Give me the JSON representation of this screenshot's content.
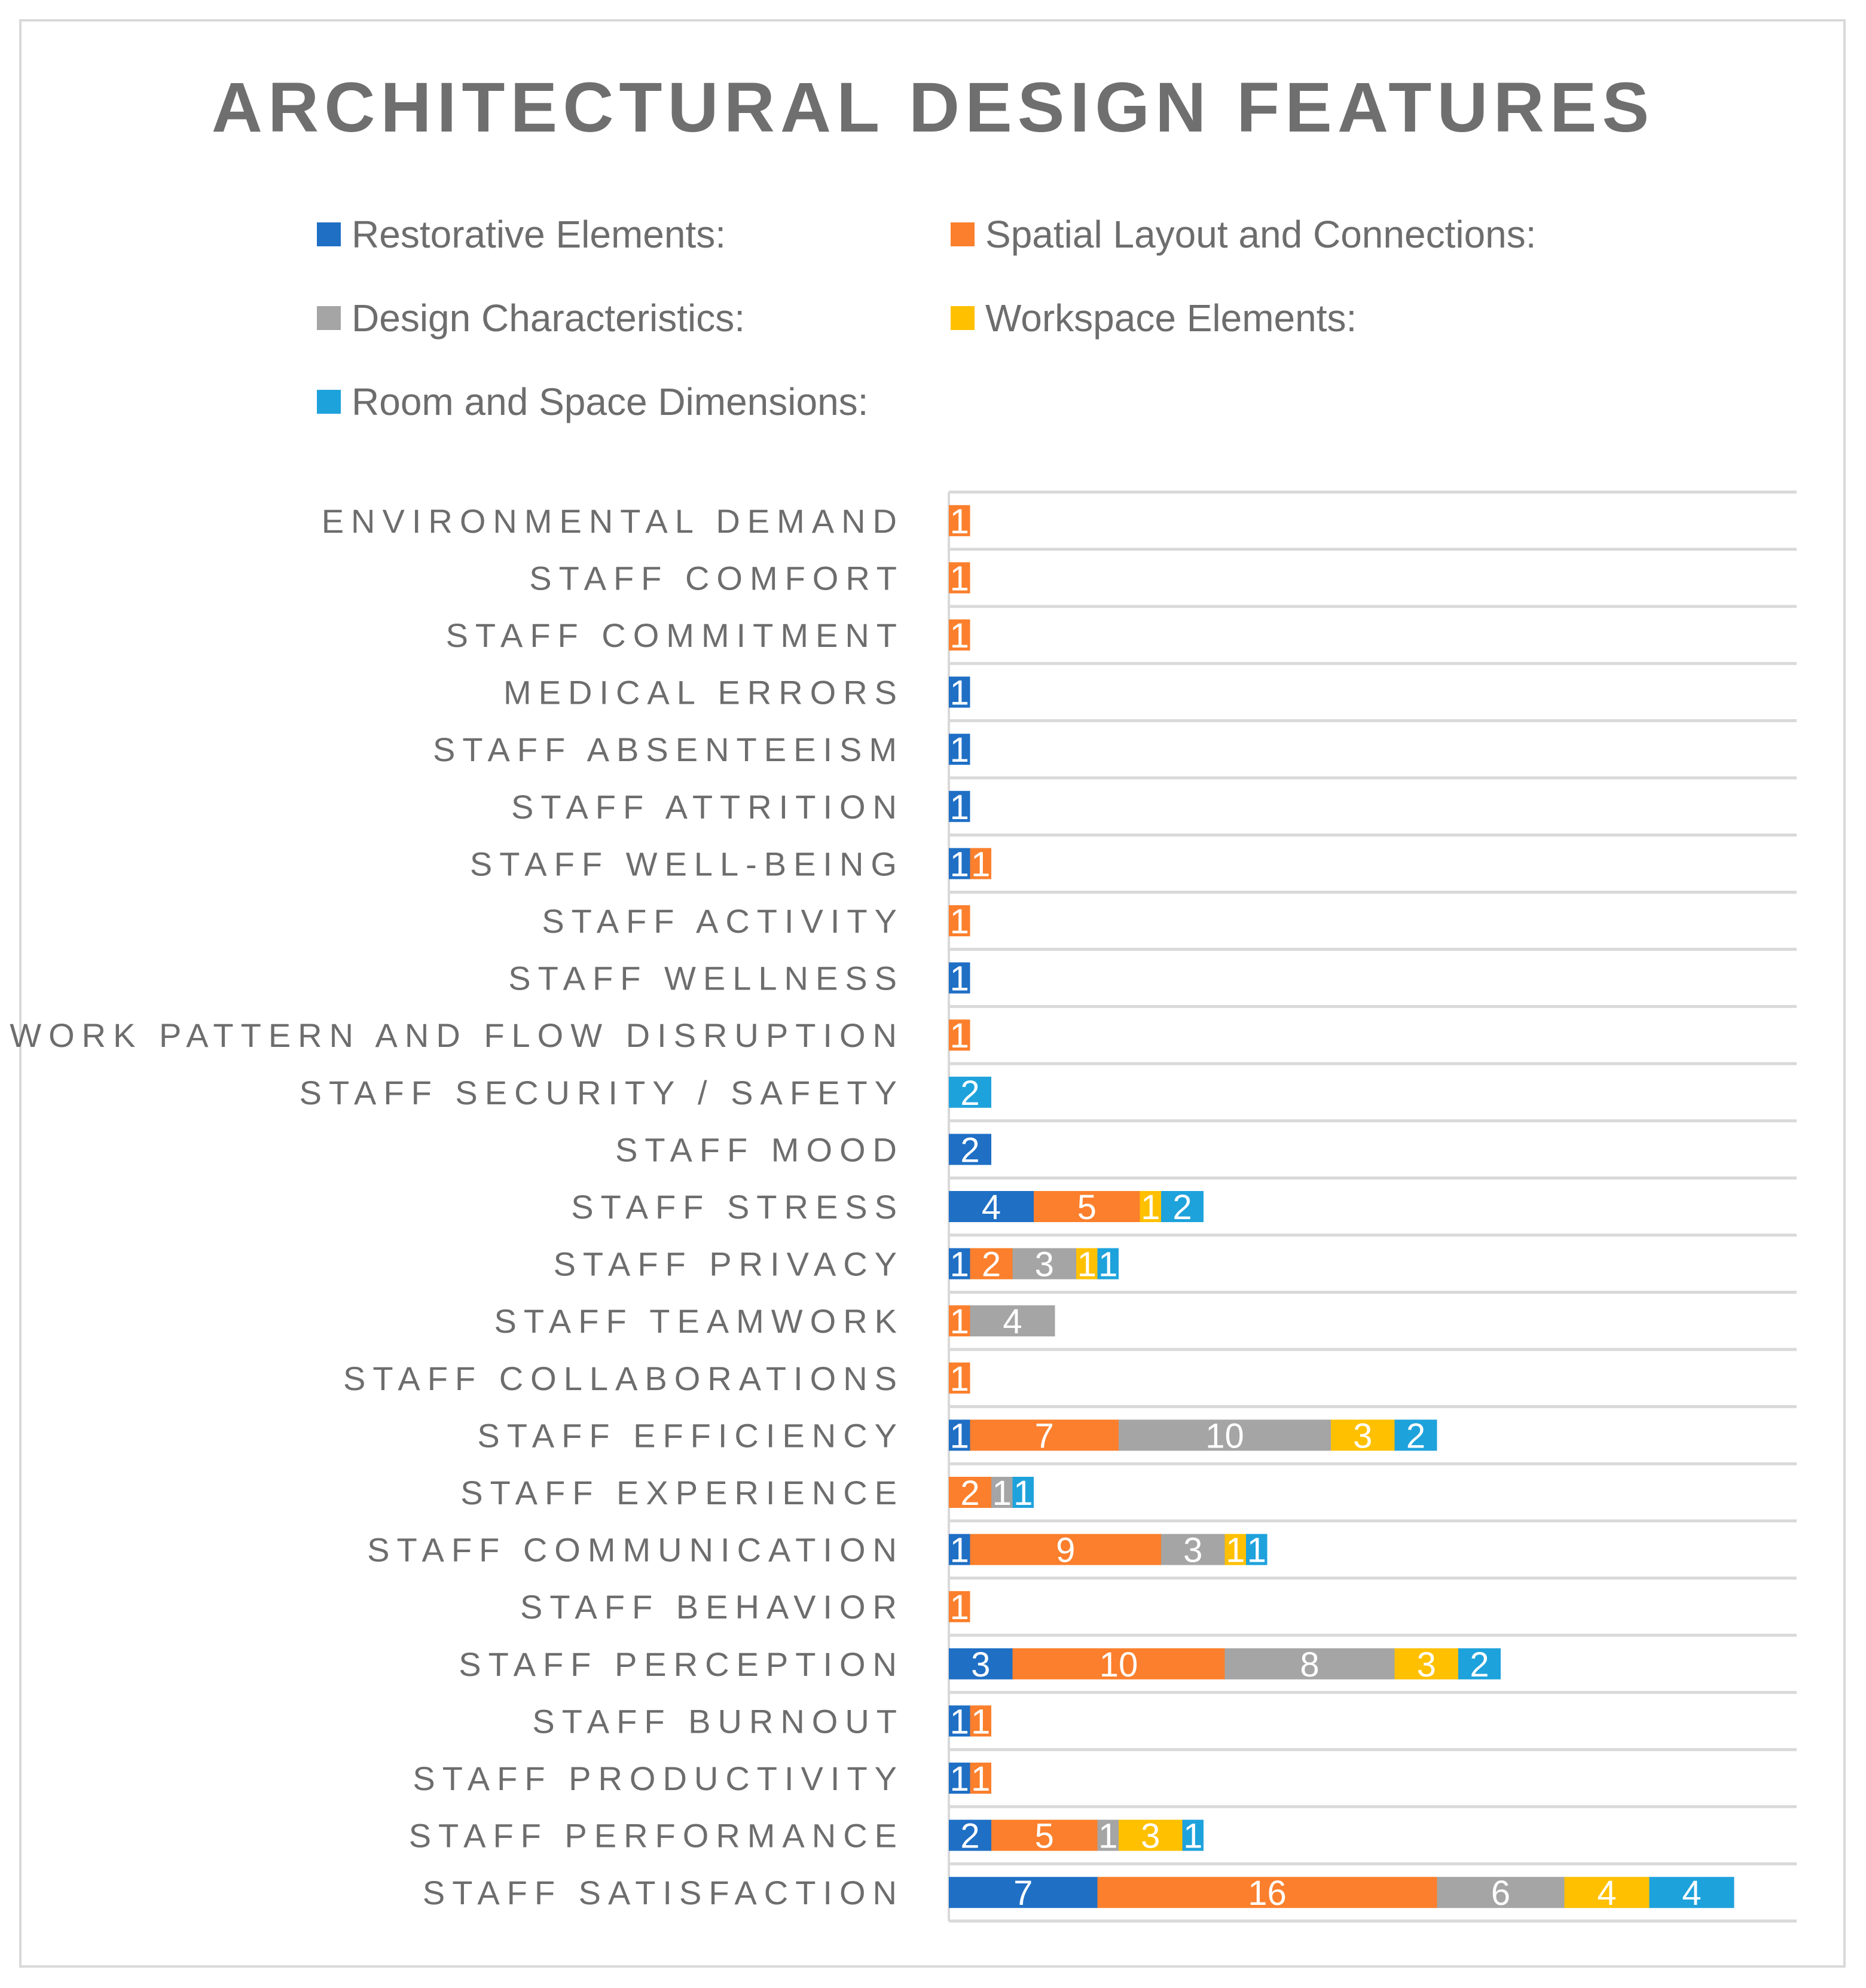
{
  "chart_data": {
    "type": "bar",
    "orientation": "horizontal",
    "stacked": true,
    "title": "ARCHITECTURAL DESIGN FEATURES",
    "legend_position": "top",
    "grid": true,
    "xlim": [
      0,
      40
    ],
    "categories": [
      "ENVIRONMENTAL DEMAND",
      "STAFF COMFORT",
      "STAFF COMMITMENT",
      "MEDICAL ERRORS",
      "STAFF ABSENTEEISM",
      "STAFF ATTRITION",
      "STAFF WELL-BEING",
      "STAFF ACTIVITY",
      "STAFF WELLNESS",
      "WORK PATTERN AND FLOW DISRUPTION",
      "STAFF SECURITY / SAFETY",
      "STAFF MOOD",
      "STAFF STRESS",
      "STAFF PRIVACY",
      "STAFF TEAMWORK",
      "STAFF COLLABORATIONS",
      "STAFF EFFICIENCY",
      "STAFF EXPERIENCE",
      "STAFF COMMUNICATION",
      "STAFF BEHAVIOR",
      "STAFF PERCEPTION",
      "STAFF BURNOUT",
      "STAFF PRODUCTIVITY",
      "STAFF PERFORMANCE",
      "STAFF SATISFACTION"
    ],
    "series": [
      {
        "name": "Restorative Elements:",
        "color": "#1f6fc5",
        "values": [
          null,
          null,
          null,
          1,
          1,
          1,
          1,
          null,
          1,
          null,
          null,
          2,
          4,
          1,
          null,
          null,
          1,
          null,
          1,
          null,
          3,
          1,
          1,
          2,
          7
        ]
      },
      {
        "name": "Spatial Layout and Connections:",
        "color": "#fb7f2c",
        "values": [
          1,
          1,
          1,
          null,
          null,
          null,
          1,
          1,
          null,
          1,
          null,
          null,
          5,
          2,
          1,
          1,
          7,
          2,
          9,
          1,
          10,
          1,
          1,
          5,
          16
        ]
      },
      {
        "name": "Design Characteristics:",
        "color": "#a5a5a5",
        "values": [
          null,
          null,
          null,
          null,
          null,
          null,
          null,
          null,
          null,
          null,
          null,
          null,
          null,
          3,
          4,
          null,
          10,
          1,
          3,
          null,
          8,
          null,
          null,
          1,
          6
        ]
      },
      {
        "name": "Workspace Elements:",
        "color": "#ffc000",
        "values": [
          null,
          null,
          null,
          null,
          null,
          null,
          null,
          null,
          null,
          null,
          null,
          null,
          1,
          1,
          null,
          null,
          3,
          null,
          1,
          null,
          3,
          null,
          null,
          3,
          4
        ]
      },
      {
        "name": "Room and Space Dimensions:",
        "color": "#1ea2dc",
        "values": [
          null,
          null,
          null,
          null,
          null,
          null,
          null,
          null,
          null,
          null,
          2,
          null,
          2,
          1,
          null,
          null,
          2,
          1,
          1,
          null,
          2,
          null,
          null,
          1,
          4
        ]
      }
    ]
  }
}
